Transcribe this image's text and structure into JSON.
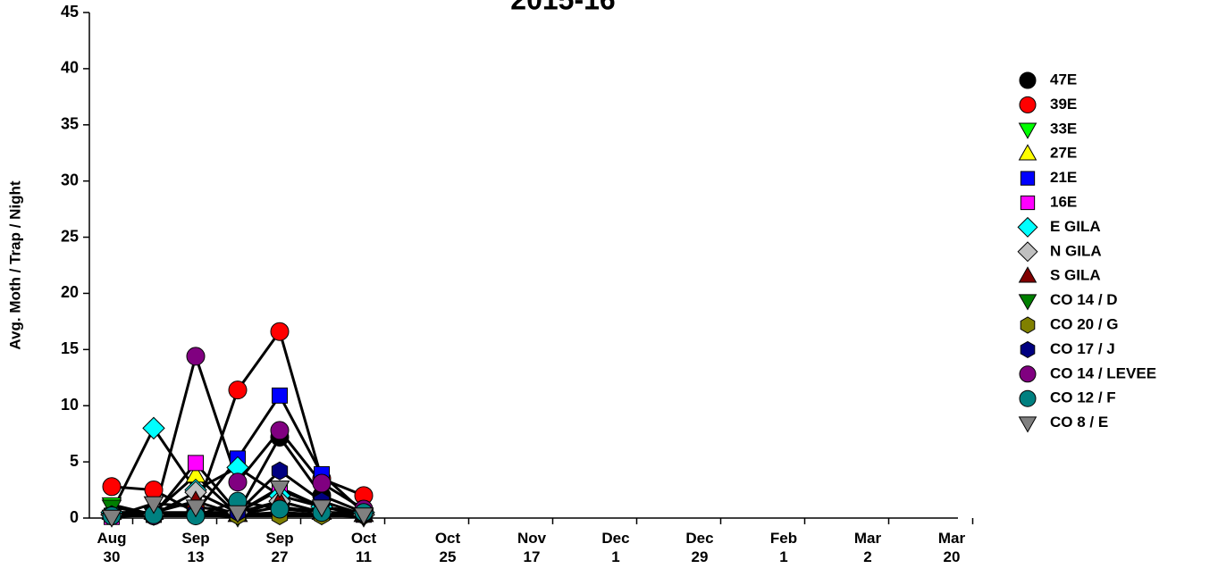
{
  "chart_data": {
    "type": "line",
    "title": "2015-16",
    "y_label": "Avg. Moth / Trap / Night",
    "categories": [
      "Aug 30",
      null,
      "Sep 13",
      null,
      "Sep 27",
      null,
      "Oct 11",
      null,
      "Oct 25",
      null,
      "Nov 17",
      null,
      "Dec 1",
      null,
      "Dec 29",
      null,
      "Feb 1",
      null,
      "Mar 2",
      null,
      "Mar 20"
    ],
    "ylim": [
      0,
      45
    ],
    "yticks": [
      0,
      5,
      10,
      15,
      20,
      25,
      30,
      35,
      40,
      45
    ],
    "line_color": "#000000",
    "series": [
      {
        "name": "47E",
        "color": "#000000",
        "marker": "circle",
        "values": [
          0.3,
          0.2,
          0.5,
          0.5,
          7.2,
          2.0,
          0.5,
          null,
          null,
          null,
          null,
          null,
          null,
          null,
          null,
          null,
          null,
          null,
          null,
          null,
          null
        ]
      },
      {
        "name": "39E",
        "color": "#ff0000",
        "marker": "circle",
        "values": [
          2.8,
          2.5,
          0.5,
          11.4,
          16.6,
          3.5,
          2.0,
          null,
          null,
          null,
          null,
          null,
          null,
          null,
          null,
          null,
          null,
          null,
          null,
          null,
          null
        ]
      },
      {
        "name": "33E",
        "color": "#00ff00",
        "marker": "triangle-down",
        "values": [
          1.2,
          0.3,
          0.3,
          0.1,
          0.5,
          0.3,
          0.1,
          null,
          null,
          null,
          null,
          null,
          null,
          null,
          null,
          null,
          null,
          null,
          null,
          null,
          null
        ]
      },
      {
        "name": "27E",
        "color": "#ffff00",
        "marker": "triangle-up",
        "values": [
          0.5,
          0.5,
          3.8,
          0.3,
          1.0,
          0.5,
          0.3,
          null,
          null,
          null,
          null,
          null,
          null,
          null,
          null,
          null,
          null,
          null,
          null,
          null,
          null
        ]
      },
      {
        "name": "21E",
        "color": "#0000ff",
        "marker": "square",
        "values": [
          0.2,
          0.3,
          0.5,
          5.3,
          10.9,
          3.9,
          0.5,
          null,
          null,
          null,
          null,
          null,
          null,
          null,
          null,
          null,
          null,
          null,
          null,
          null,
          null
        ]
      },
      {
        "name": "16E",
        "color": "#ff00ff",
        "marker": "square",
        "values": [
          0.1,
          0.3,
          4.9,
          0.5,
          2.5,
          1.0,
          0.3,
          null,
          null,
          null,
          null,
          null,
          null,
          null,
          null,
          null,
          null,
          null,
          null,
          null,
          null
        ]
      },
      {
        "name": "E GILA",
        "color": "#00ffff",
        "marker": "diamond",
        "values": [
          0.5,
          8.0,
          2.5,
          4.5,
          2.0,
          1.0,
          0.5,
          null,
          null,
          null,
          null,
          null,
          null,
          null,
          null,
          null,
          null,
          null,
          null,
          null,
          null
        ]
      },
      {
        "name": "N GILA",
        "color": "#c0c0c0",
        "marker": "diamond",
        "values": [
          0.3,
          0.3,
          2.3,
          0.5,
          1.5,
          0.5,
          0.3,
          null,
          null,
          null,
          null,
          null,
          null,
          null,
          null,
          null,
          null,
          null,
          null,
          null,
          null
        ]
      },
      {
        "name": "S GILA",
        "color": "#800000",
        "marker": "triangle-up",
        "values": [
          0.5,
          0.5,
          1.5,
          0.3,
          1.5,
          0.5,
          0.3,
          null,
          null,
          null,
          null,
          null,
          null,
          null,
          null,
          null,
          null,
          null,
          null,
          null,
          null
        ]
      },
      {
        "name": "CO 14 / D",
        "color": "#008000",
        "marker": "triangle-down",
        "values": [
          1.0,
          0.3,
          0.3,
          0.3,
          0.5,
          0.3,
          0.2,
          null,
          null,
          null,
          null,
          null,
          null,
          null,
          null,
          null,
          null,
          null,
          null,
          null,
          null
        ]
      },
      {
        "name": "CO 20 / G",
        "color": "#808000",
        "marker": "hexagon",
        "values": [
          0.2,
          0.2,
          0.2,
          0.2,
          0.2,
          0.2,
          0.2,
          null,
          null,
          null,
          null,
          null,
          null,
          null,
          null,
          null,
          null,
          null,
          null,
          null,
          null
        ]
      },
      {
        "name": "CO 17 / J",
        "color": "#000080",
        "marker": "hexagon",
        "values": [
          0.3,
          0.5,
          0.5,
          0.5,
          4.2,
          1.5,
          0.3,
          null,
          null,
          null,
          null,
          null,
          null,
          null,
          null,
          null,
          null,
          null,
          null,
          null,
          null
        ]
      },
      {
        "name": "CO 14 / LEVEE",
        "color": "#800080",
        "marker": "circle",
        "values": [
          0.2,
          0.2,
          14.4,
          3.2,
          7.8,
          3.1,
          0.8,
          null,
          null,
          null,
          null,
          null,
          null,
          null,
          null,
          null,
          null,
          null,
          null,
          null,
          null
        ]
      },
      {
        "name": "CO 12 / F",
        "color": "#008080",
        "marker": "circle",
        "values": [
          0.2,
          0.3,
          0.2,
          1.5,
          0.8,
          0.5,
          0.5,
          null,
          null,
          null,
          null,
          null,
          null,
          null,
          null,
          null,
          null,
          null,
          null,
          null,
          null
        ]
      },
      {
        "name": "CO 8 / E",
        "color": "#808080",
        "marker": "triangle-down",
        "values": [
          0.1,
          1.3,
          1.0,
          0.5,
          2.7,
          1.0,
          0.3,
          null,
          null,
          null,
          null,
          null,
          null,
          null,
          null,
          null,
          null,
          null,
          null,
          null,
          null
        ]
      }
    ]
  }
}
